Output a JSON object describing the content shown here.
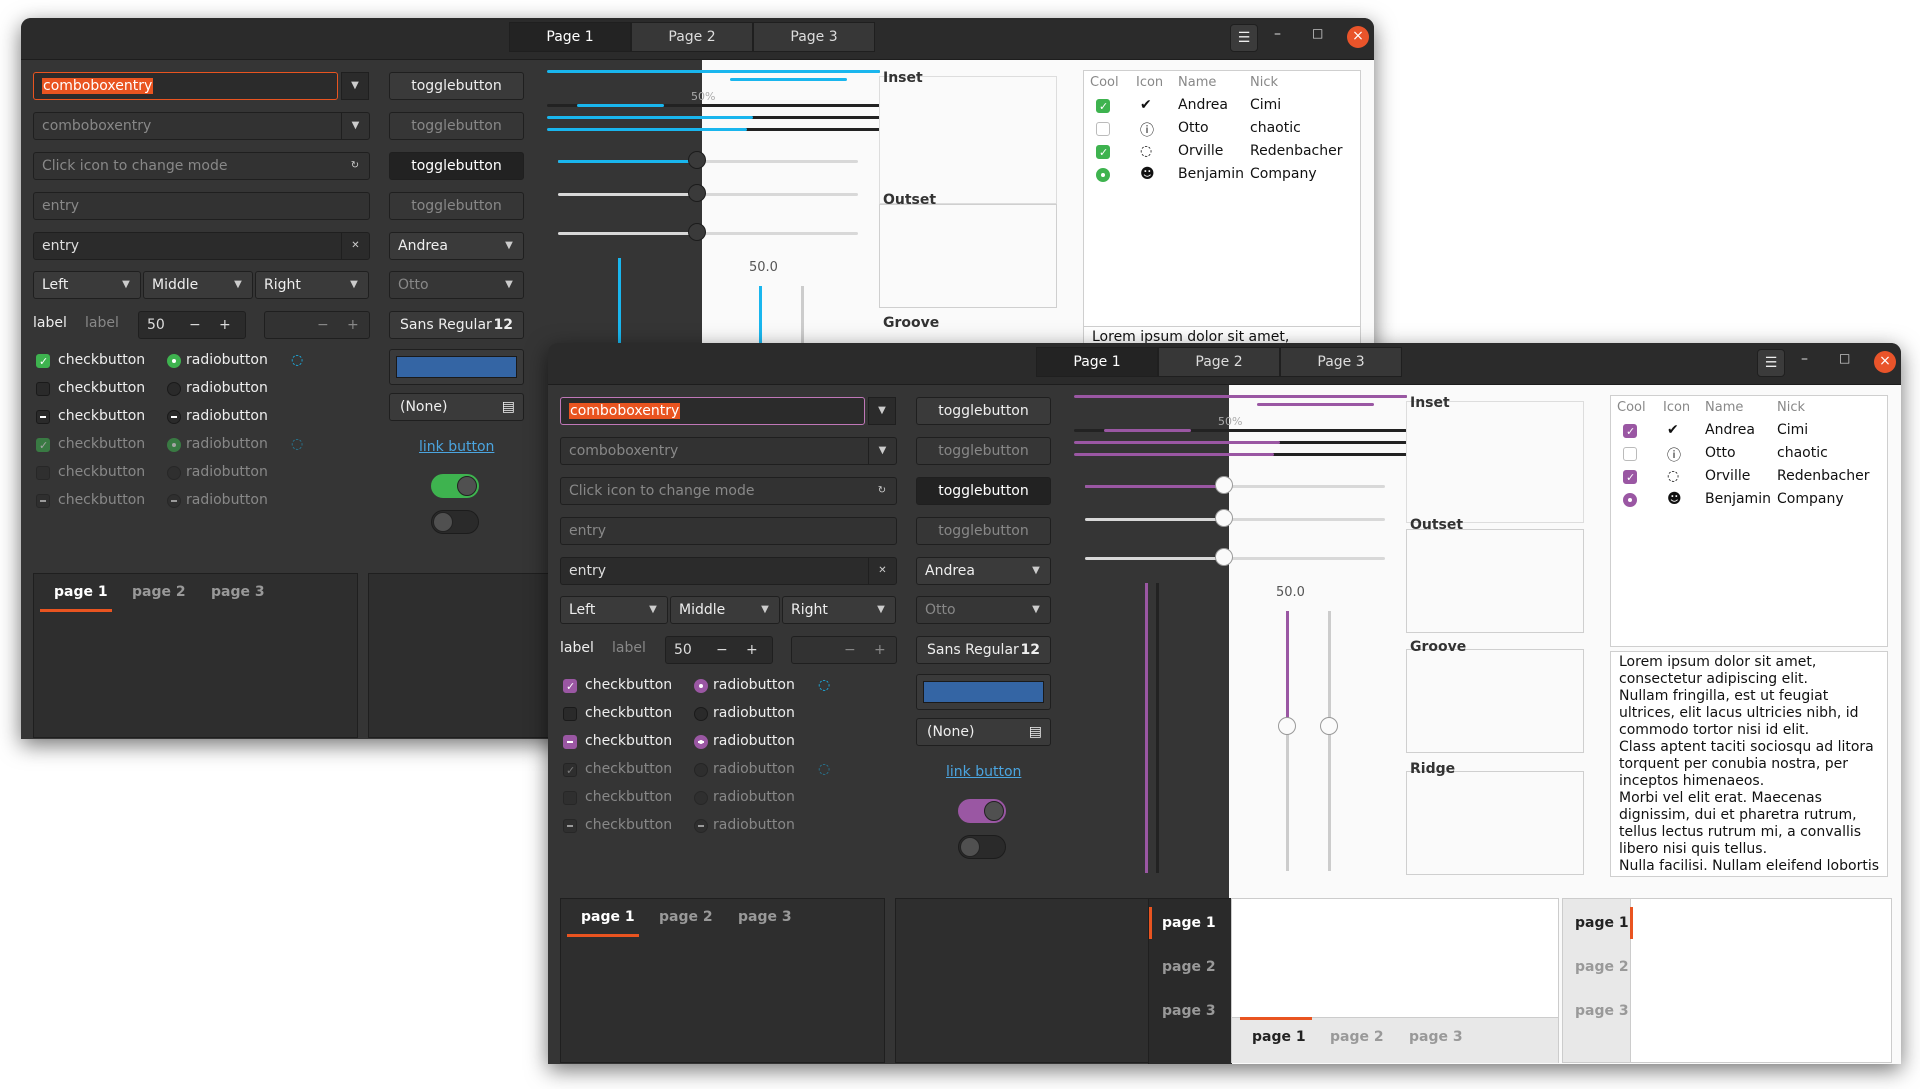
{
  "window": {
    "tabs": [
      "Page 1",
      "Page 2",
      "Page 3"
    ],
    "menu_icon": "hamburger-icon",
    "minimize_icon": "minimize-icon",
    "maximize_icon": "maximize-icon",
    "close_icon": "close-icon"
  },
  "left": {
    "combo1_value": "comboboxentry",
    "combo2_value": "comboboxentry",
    "mode_placeholder": "Click icon to change mode",
    "entry1_placeholder": "entry",
    "entry2_value": "entry",
    "combos": [
      "Left",
      "Middle",
      "Right"
    ],
    "label1": "label",
    "label2": "label",
    "spin_value": "50",
    "minus": "−",
    "plus": "+",
    "checkbuttons": [
      "checkbutton",
      "checkbutton",
      "checkbutton",
      "checkbutton",
      "checkbutton",
      "checkbutton"
    ],
    "radiobuttons": [
      "radiobutton",
      "radiobutton",
      "radiobutton",
      "radiobutton",
      "radiobutton",
      "radiobutton"
    ]
  },
  "middle": {
    "toggles": [
      "togglebutton",
      "togglebutton",
      "togglebutton",
      "togglebutton"
    ],
    "combo_andrea": "Andrea",
    "combo_otto": "Otto",
    "font_name": "Sans Regular",
    "font_size": "12",
    "file_none": "(None)",
    "link": "link button"
  },
  "scales": {
    "progress_label": "50%",
    "scale_value": "50.0"
  },
  "frames": [
    "Inset",
    "Outset",
    "Groove",
    "Ridge"
  ],
  "tree": {
    "headers": [
      "Cool",
      "Icon",
      "Name",
      "Nick"
    ],
    "rows": [
      {
        "cool": "checked",
        "icon": "check-circle-icon",
        "name": "Andrea",
        "nick": "Cimi"
      },
      {
        "cool": "unchecked",
        "icon": "warning-icon",
        "name": "Otto",
        "nick": "chaotic"
      },
      {
        "cool": "checked",
        "icon": "spinner-icon",
        "name": "Orville",
        "nick": "Redenbacher"
      },
      {
        "cool": "radio",
        "icon": "person-icon",
        "name": "Benjamin",
        "nick": "Company"
      }
    ]
  },
  "lorem": "Lorem ipsum dolor sit amet,\nconsectetur adipiscing elit.\nNullam fringilla, est ut feugiat\nultrices, elit lacus ultricies nibh, id\ncommodo tortor nisi id elit.\nClass aptent taciti sociosqu ad litora\ntorquent per conubia nostra, per\ninceptos himenaeos.\nMorbi vel elit erat. Maecenas\ndignissim, dui et pharetra rutrum,\ntellus lectus rutrum mi, a convallis\nlibero nisi quis tellus.\nNulla facilisi. Nullam eleifend lobortis",
  "lorem_short": "Lorem ipsum dolor sit amet,",
  "notebook": [
    "page 1",
    "page 2",
    "page 3"
  ],
  "colors": {
    "accent_back": "#19b6ee",
    "accent_front": "#9a57a3",
    "focus": "#e95420",
    "swatch": "#3465a4"
  }
}
